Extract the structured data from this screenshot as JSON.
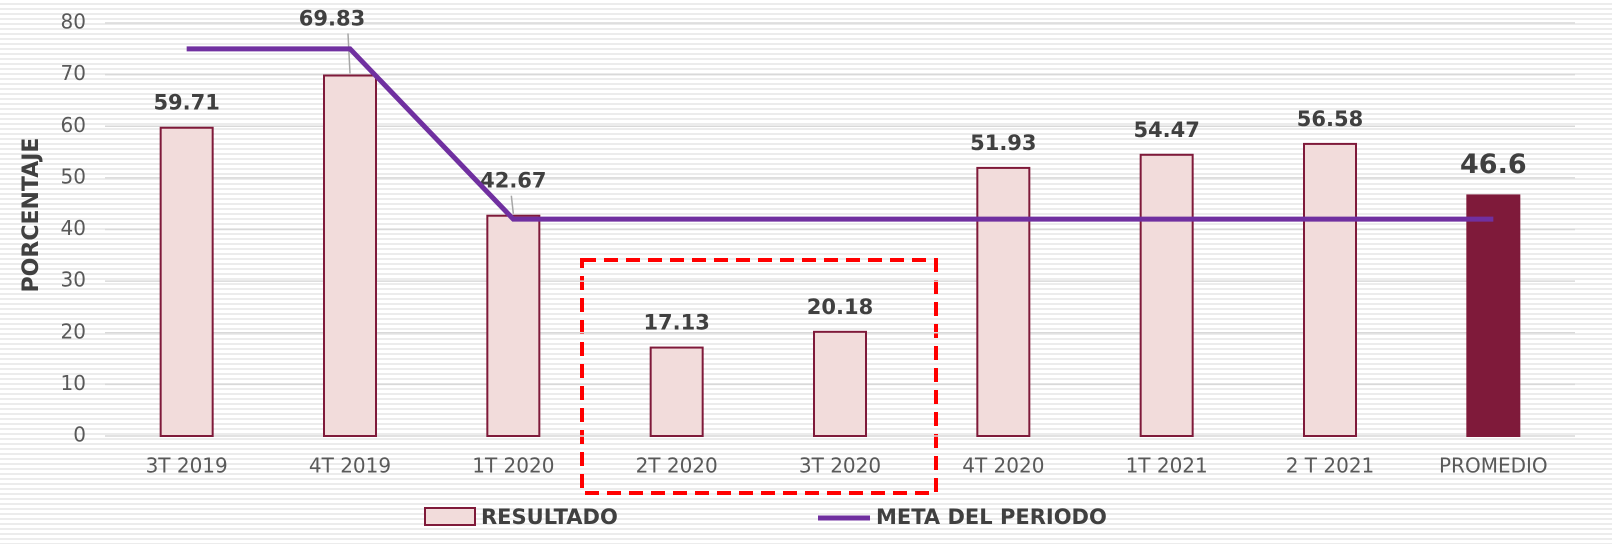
{
  "chart_data": {
    "type": "bar",
    "y_label": "PORCENTAJE",
    "categories": [
      "3T 2019",
      "4T 2019",
      "1T 2020",
      "2T 2020",
      "3T 2020",
      "4T 2020",
      "1T 2021",
      "2 T 2021",
      "PROMEDIO"
    ],
    "series": [
      {
        "name": "RESULTADO",
        "type": "bar",
        "color": "#f2dcdb",
        "border": "#7f1a3a",
        "colors": [
          "#f2dcdb",
          "#f2dcdb",
          "#f2dcdb",
          "#f2dcdb",
          "#f2dcdb",
          "#f2dcdb",
          "#f2dcdb",
          "#f2dcdb",
          "#7f1a3a"
        ],
        "values": [
          59.71,
          69.83,
          42.67,
          17.13,
          20.18,
          51.93,
          54.47,
          56.58,
          46.6
        ]
      },
      {
        "name": "META DEL PERIODO",
        "type": "line",
        "color": "#7030a0",
        "values": [
          75,
          75,
          42,
          42,
          42,
          42,
          42,
          42,
          42
        ]
      }
    ],
    "ylim": [
      0,
      80
    ],
    "yticks": [
      0,
      10,
      20,
      30,
      40,
      50,
      60,
      70,
      80
    ],
    "grid": true,
    "legend": "bottom"
  }
}
